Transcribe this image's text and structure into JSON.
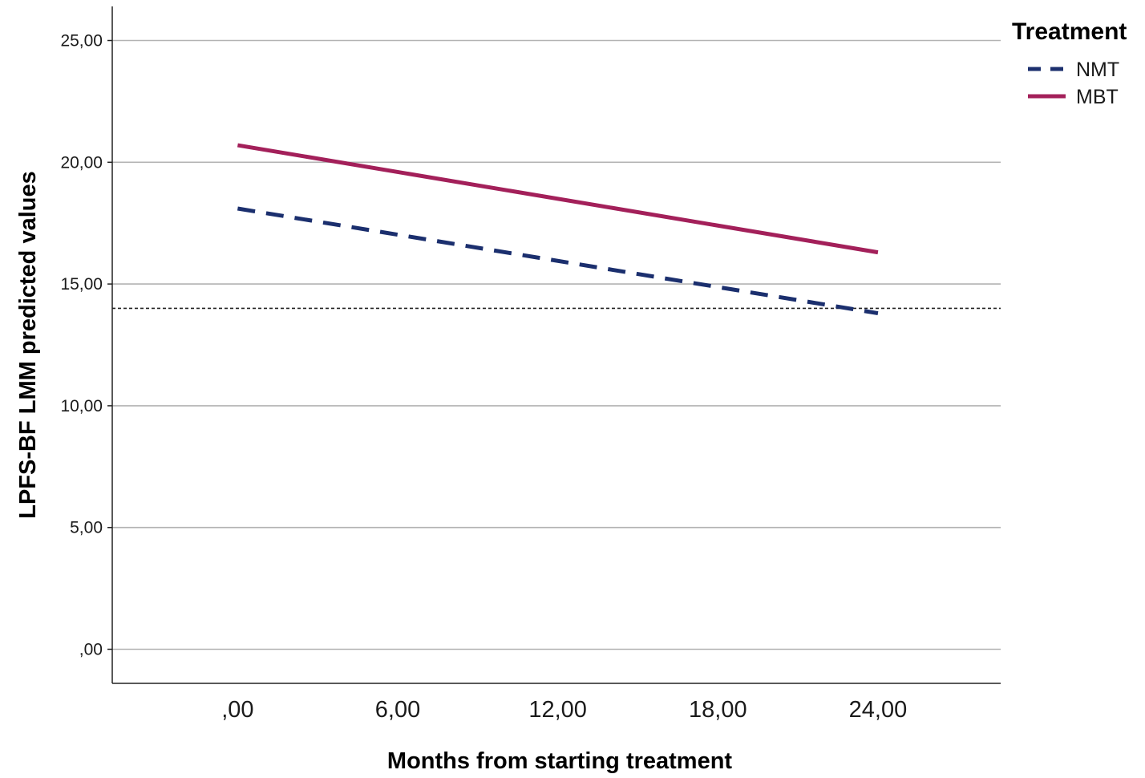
{
  "chart_data": {
    "type": "line",
    "xlabel": "Months from starting treatment",
    "ylabel": "LPFS-BF LMM predicted values",
    "x": [
      0,
      24
    ],
    "x_tick_values": [
      0,
      6,
      12,
      18,
      24
    ],
    "x_tick_labels": [
      ",00",
      "6,00",
      "12,00",
      "18,00",
      "24,00"
    ],
    "xlim": [
      -4.7,
      28.6
    ],
    "y_tick_values": [
      0,
      5,
      10,
      15,
      20,
      25
    ],
    "y_tick_labels": [
      ",00",
      "5,00",
      "10,00",
      "15,00",
      "20,00",
      "25,00"
    ],
    "ylim": [
      -1.4,
      26.4
    ],
    "grid": "horizontal",
    "reference_line": {
      "y": 14,
      "style": "dotted"
    },
    "legend": {
      "title": "Treatment",
      "placement": "top-right"
    },
    "series": [
      {
        "name": "NMT",
        "values": [
          18.1,
          13.8
        ],
        "color": "#1b2f6e",
        "style": "dashed"
      },
      {
        "name": "MBT",
        "values": [
          20.7,
          16.3
        ],
        "color": "#a3205a",
        "style": "solid"
      }
    ]
  }
}
